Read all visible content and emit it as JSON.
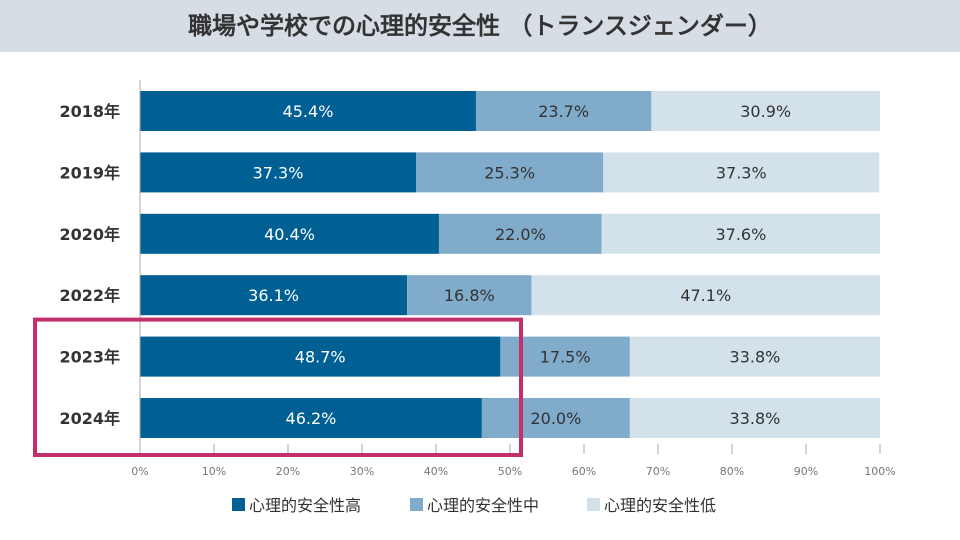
{
  "chart_data": {
    "type": "bar",
    "orientation": "horizontal",
    "stacked": true,
    "title": "職場や学校での心理的安全性 （トランスジェンダー）",
    "categories": [
      "2018年",
      "2019年",
      "2020年",
      "2022年",
      "2023年",
      "2024年"
    ],
    "series": [
      {
        "name": "心理的安全性高",
        "color": "#005f93",
        "values": [
          45.4,
          37.3,
          40.4,
          36.1,
          48.7,
          46.2
        ],
        "labels": [
          "45.4%",
          "37.3%",
          "40.4%",
          "36.1%",
          "48.7%",
          "46.2%"
        ]
      },
      {
        "name": "心理的安全性中",
        "color": "#80abcb",
        "values": [
          23.7,
          25.3,
          22.0,
          16.8,
          17.5,
          20.0
        ],
        "labels": [
          "23.7%",
          "25.3%",
          "22.0%",
          "16.8%",
          "17.5%",
          "20.0%"
        ]
      },
      {
        "name": "心理的安全性低",
        "color": "#d3e1ea",
        "values": [
          30.9,
          37.3,
          37.6,
          47.1,
          33.8,
          33.8
        ],
        "labels": [
          "30.9%",
          "37.3%",
          "37.6%",
          "47.1%",
          "33.8%",
          "33.8%"
        ]
      }
    ],
    "xlim": [
      0,
      100
    ],
    "xticks": [
      "0%",
      "10%",
      "20%",
      "30%",
      "40%",
      "50%",
      "60%",
      "70%",
      "80%",
      "90%",
      "100%"
    ],
    "grid": false,
    "legend": "bottom",
    "highlight": {
      "categories": [
        "2023年",
        "2024年"
      ],
      "color": "#c2306c"
    }
  }
}
